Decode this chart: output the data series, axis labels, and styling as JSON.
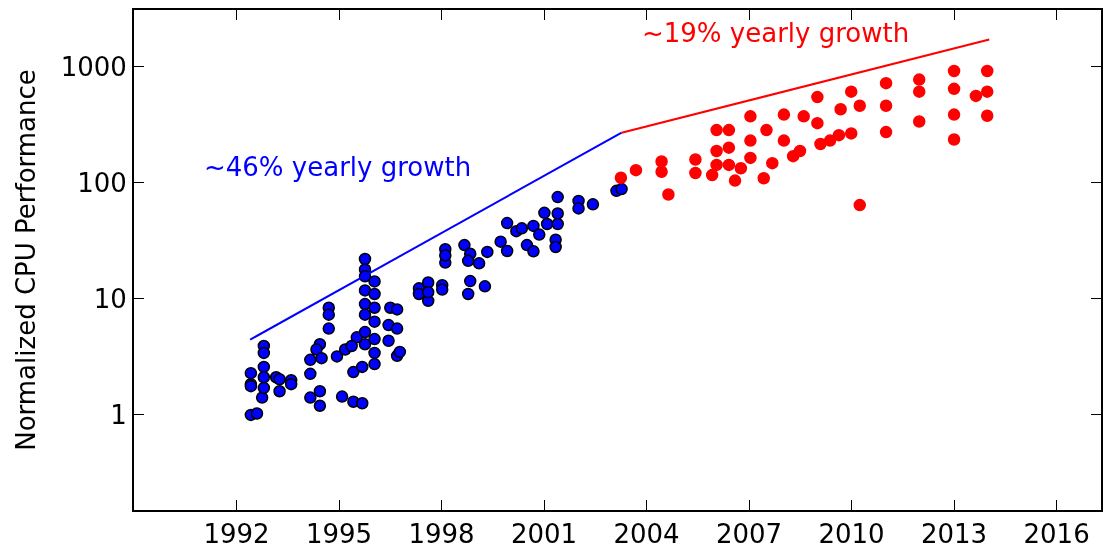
{
  "chart_data": {
    "type": "scatter",
    "ylabel": "Normalized CPU Performance",
    "log": "y",
    "xlim": [
      1989.0,
      2017.3
    ],
    "xticks": [
      1992,
      1995,
      1998,
      2001,
      2004,
      2007,
      2010,
      2013,
      2016
    ],
    "ylim": [
      0.152,
      3060
    ],
    "yticks": [
      1,
      10,
      100,
      1000
    ],
    "annotations": [
      "~46% yearly growth",
      "~19% yearly growth"
    ],
    "series": [
      {
        "marker": "circle",
        "color": "#0000ff",
        "x": [
          1992.42,
          1992.6,
          1992.42,
          1992.42,
          1992.42,
          1992.75,
          1992.8,
          1992.8,
          1992.8,
          1992.8,
          1992.8,
          1993.16,
          1993.26,
          1993.26,
          1993.6,
          1993.6,
          1994.16,
          1994.16,
          1994.16,
          1994.44,
          1994.44,
          1994.44,
          1994.34,
          1994.49,
          1994.7,
          1994.7,
          1994.7,
          1994.94,
          1995.18,
          1995.09,
          1995.42,
          1995.68,
          1995.42,
          1995.68,
          1995.52,
          1995.37,
          1995.76,
          1995.76,
          1995.76,
          1995.76,
          1995.76,
          1995.76,
          1995.76,
          1995.76,
          1996.04,
          1996.04,
          1996.04,
          1996.04,
          1996.04,
          1996.04,
          1996.04,
          1996.45,
          1996.45,
          1996.5,
          1996.7,
          1996.7,
          1996.7,
          1996.78,
          1997.34,
          1997.34,
          1997.61,
          1997.61,
          1997.61,
          1998.02,
          1998.02,
          1998.11,
          1998.11,
          1998.11,
          1998.67,
          1998.84,
          1998.78,
          1999.1,
          1999.34,
          1998.78,
          1998.84,
          1999.27,
          1999.73,
          1999.92,
          1999.92,
          2000.19,
          2000.35,
          2000.5,
          2000.69,
          2000.69,
          2000.86,
          2001.01,
          2001.09,
          2001.4,
          2001.4,
          2001.4,
          2001.34,
          2001.34,
          2002.01,
          2002.01,
          2002.43,
          2003.12,
          2003.27
        ],
        "values": [
          1.0,
          1.03,
          1.84,
          2.29,
          1.77,
          1.41,
          3.92,
          3.42,
          2.59,
          2.11,
          1.71,
          2.11,
          1.6,
          2.03,
          1.99,
          1.84,
          2.26,
          2.98,
          1.41,
          1.2,
          1.6,
          4.06,
          3.66,
          3.08,
          8.37,
          7.3,
          5.54,
          3.19,
          3.66,
          1.44,
          1.3,
          1.26,
          2.34,
          2.59,
          4.66,
          3.92,
          22.0,
          17.9,
          15.6,
          11.8,
          9.0,
          7.3,
          5.17,
          4.06,
          2.74,
          3.42,
          4.5,
          6.35,
          8.37,
          11.0,
          14.1,
          4.35,
          5.94,
          8.37,
          8.1,
          5.54,
          3.23,
          3.49,
          12.3,
          11.0,
          13.8,
          9.6,
          11.4,
          13.1,
          12.0,
          26.7,
          20.5,
          23.6,
          29.0,
          24.4,
          21.2,
          20.2,
          25.3,
          11.0,
          14.2,
          12.8,
          31.0,
          44.8,
          25.8,
          38.2,
          40.4,
          29.0,
          25.6,
          42.4,
          35.7,
          54.9,
          44.0,
          75.1,
          54.2,
          44.0,
          32.2,
          27.9,
          69.6,
          60.0,
          65.0,
          84.9,
          88.0
        ]
      },
      {
        "marker": "circle",
        "color": "#ff0000",
        "x": [
          2003.25,
          2003.69,
          2004.44,
          2004.44,
          2004.64,
          2005.43,
          2005.43,
          2005.92,
          2006.05,
          2006.05,
          2006.05,
          2006.41,
          2006.41,
          2006.41,
          2006.59,
          2006.76,
          2007.04,
          2007.04,
          2007.04,
          2007.43,
          2007.51,
          2007.68,
          2008.02,
          2008.02,
          2008.29,
          2008.49,
          2008.6,
          2009.0,
          2009.0,
          2009.09,
          2009.37,
          2009.63,
          2009.68,
          2009.99,
          2009.99,
          2010.24,
          2010.24,
          2011.01,
          2011.01,
          2011.01,
          2011.98,
          2011.98,
          2011.98,
          2013.0,
          2013.0,
          2013.0,
          2013.0,
          2013.64,
          2013.97,
          2013.97,
          2013.97
        ],
        "values": [
          110,
          128,
          152,
          124,
          79,
          158,
          121,
          116,
          283,
          187,
          142,
          283,
          200,
          142,
          104,
          133,
          372,
          163,
          230,
          109,
          283,
          147,
          385,
          230,
          169,
          187,
          372,
          545,
          325,
          215,
          230,
          256,
          428,
          606,
          265,
          459,
          64,
          718,
          459,
          272,
          771,
          606,
          336,
          913,
          641,
          385,
          235,
          557,
          913,
          606,
          376
        ]
      },
      {
        "type": "line",
        "marker": "none",
        "color": "#0000ff",
        "x": [
          1992.4,
          2003.27
        ],
        "values": [
          4.45,
          269
        ]
      },
      {
        "type": "line",
        "marker": "none",
        "color": "#ff0000",
        "x": [
          2003.27,
          2014.03
        ],
        "values": [
          269,
          1703
        ]
      }
    ]
  }
}
